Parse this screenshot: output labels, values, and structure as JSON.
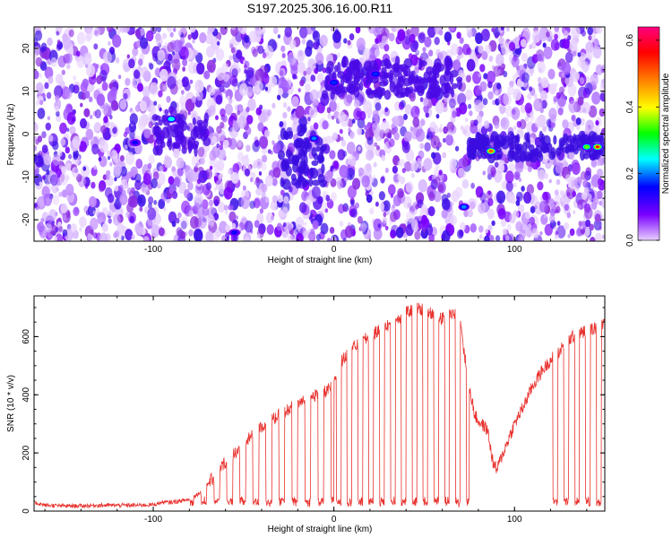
{
  "title": "S197.2025.306.16.00.R11",
  "chart_data": [
    {
      "type": "heatmap",
      "xlabel": "Height of straight line (km)",
      "ylabel": "Frequency (Hz)",
      "xlim": [
        -166,
        150
      ],
      "ylim": [
        -25,
        25
      ],
      "xticks": [
        "-100",
        "0",
        "100"
      ],
      "xtick_values": [
        -100,
        0,
        100
      ],
      "yticks": [
        "20",
        "10",
        "0",
        "-10",
        "-20"
      ],
      "ytick_values": [
        20,
        10,
        0,
        -10,
        -20
      ],
      "colorbar": {
        "label": "Normalized spectral amplitude",
        "range": [
          0,
          0.64
        ],
        "ticks": [
          "0.0",
          "0.2",
          "0.4",
          "0.6"
        ],
        "tick_values": [
          0.0,
          0.2,
          0.4,
          0.6
        ],
        "stops": [
          "#e8d0ff",
          "#7a00ff",
          "#0000ff",
          "#00ffff",
          "#00ff00",
          "#ffff00",
          "#ff8000",
          "#ff0000",
          "#ff0080"
        ]
      },
      "hot_spots": [
        {
          "x": -90,
          "y": 3.5,
          "level": 0.25
        },
        {
          "x": -11,
          "y": -1,
          "level": 0.2
        },
        {
          "x": 0,
          "y": 12,
          "level": 0.17
        },
        {
          "x": 23,
          "y": 14,
          "level": 0.17
        },
        {
          "x": 72,
          "y": -17,
          "level": 0.2
        },
        {
          "x": 87,
          "y": -4,
          "level": 0.5
        },
        {
          "x": 140,
          "y": -3,
          "level": 0.35
        },
        {
          "x": 146,
          "y": -3,
          "level": 0.55
        },
        {
          "x": -110,
          "y": -2,
          "level": 0.15
        },
        {
          "x": -55,
          "y": -23,
          "level": 0.15
        }
      ]
    },
    {
      "type": "line",
      "xlabel": "Height of straight line (km)",
      "ylabel": "SNR (10 * v/v)",
      "xlim": [
        -166,
        150
      ],
      "ylim": [
        0,
        740
      ],
      "xticks": [
        "-100",
        "0",
        "100"
      ],
      "xtick_values": [
        -100,
        0,
        100
      ],
      "yticks": [
        "0",
        "200",
        "400",
        "600"
      ],
      "ytick_values": [
        0,
        200,
        400,
        600
      ],
      "series_color": "#e8322e",
      "series": [
        {
          "name": "SNR",
          "x": [
            -166,
            -160,
            -150,
            -140,
            -130,
            -120,
            -110,
            -100,
            -95,
            -90,
            -85,
            -80,
            -75,
            -70,
            -65,
            -60,
            -55,
            -50,
            -45,
            -40,
            -35,
            -30,
            -25,
            -20,
            -15,
            -10,
            -5,
            0,
            2,
            5,
            10,
            15,
            20,
            25,
            30,
            35,
            40,
            45,
            50,
            55,
            60,
            65,
            70,
            72,
            75,
            78,
            80,
            85,
            88,
            90,
            95,
            100,
            105,
            110,
            115,
            120,
            125,
            130,
            135,
            140,
            145,
            150
          ],
          "values": [
            30,
            20,
            18,
            18,
            20,
            20,
            20,
            22,
            30,
            30,
            35,
            40,
            60,
            90,
            130,
            170,
            200,
            230,
            260,
            290,
            310,
            330,
            350,
            370,
            380,
            400,
            410,
            430,
            500,
            520,
            560,
            580,
            600,
            620,
            640,
            660,
            680,
            700,
            690,
            680,
            660,
            680,
            670,
            550,
            430,
            330,
            310,
            280,
            170,
            140,
            220,
            300,
            360,
            430,
            480,
            520,
            550,
            590,
            610,
            620,
            630,
            640
          ]
        }
      ]
    }
  ]
}
